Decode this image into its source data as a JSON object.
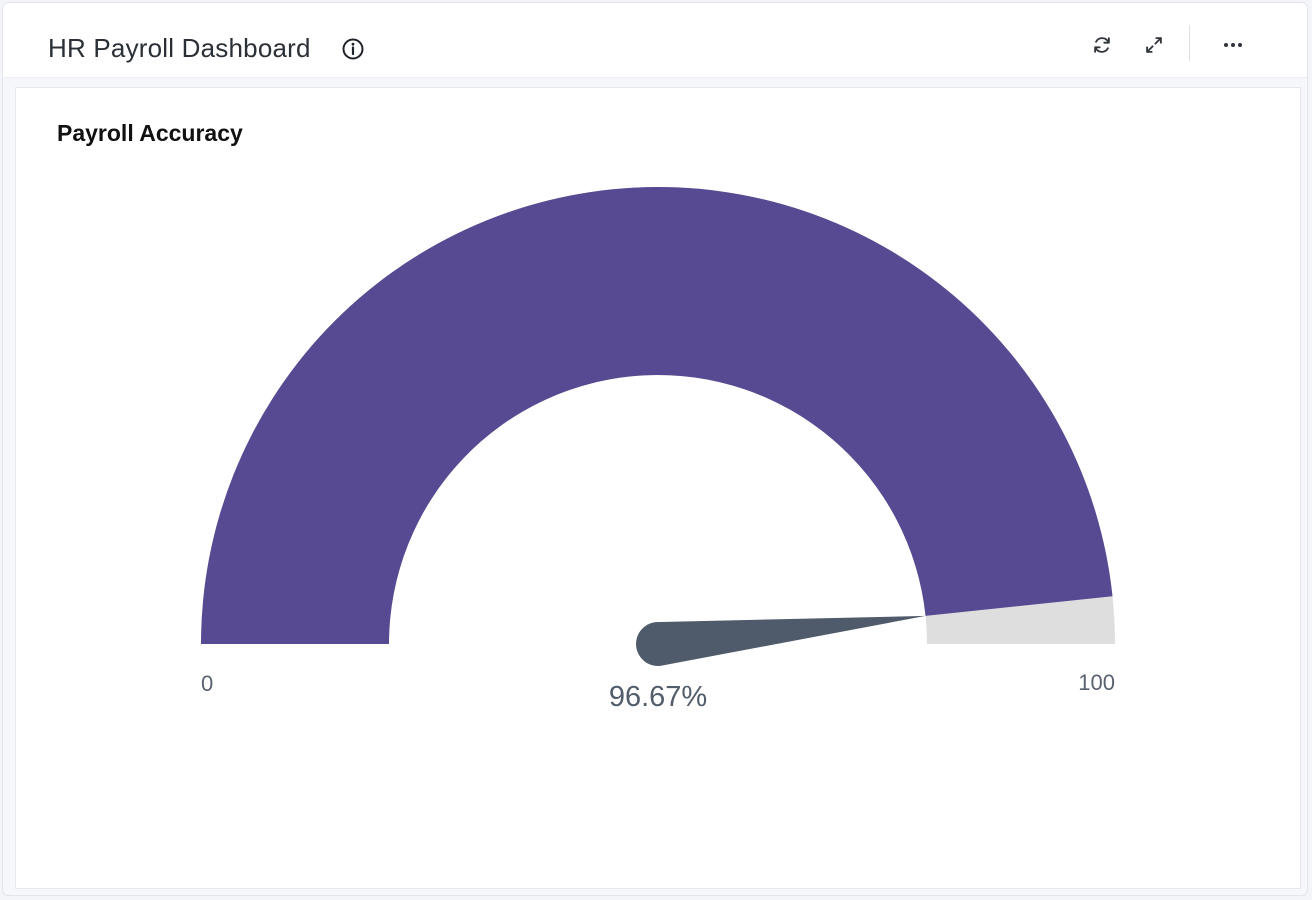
{
  "header": {
    "title": "HR Payroll Dashboard",
    "icons": {
      "info": "info-icon",
      "refresh": "refresh-icon",
      "expand": "expand-icon",
      "more": "more-horizontal-icon"
    }
  },
  "widget": {
    "title": "Payroll Accuracy"
  },
  "colors": {
    "gauge_fill": "#574a92",
    "gauge_track": "#dedede",
    "needle": "#4f5b6b"
  },
  "chart_data": {
    "type": "gauge",
    "title": "Payroll Accuracy",
    "value": 96.67,
    "min": 0,
    "max": 100,
    "min_label": "0",
    "max_label": "100",
    "value_label": "96.67%"
  }
}
